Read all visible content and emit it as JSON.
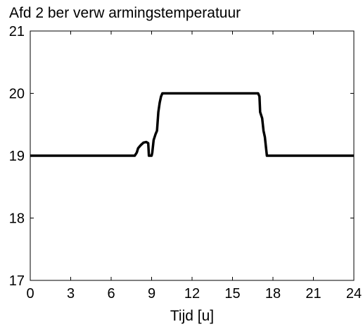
{
  "chart_data": {
    "type": "line",
    "title": "Afd 2 ber verw armingstemperatuur",
    "xlabel": "Tijd [u]",
    "ylabel": "",
    "xlim": [
      0,
      24
    ],
    "ylim": [
      17,
      21
    ],
    "xticks": [
      0,
      3,
      6,
      9,
      12,
      15,
      18,
      21,
      24
    ],
    "yticks": [
      17,
      18,
      19,
      20,
      21
    ],
    "grid": false,
    "colors": {
      "line": "#000000",
      "axes": "#000000",
      "background": "#ffffff"
    },
    "series": [
      {
        "x": [
          0,
          7.75,
          7.9,
          8.0,
          8.2,
          8.4,
          8.6,
          8.75,
          8.8,
          9.0,
          9.05,
          9.15,
          9.3,
          9.4,
          9.5,
          9.6,
          9.7,
          9.8,
          10.0,
          12.0,
          15.0,
          16.8,
          16.9,
          17.0,
          17.05,
          17.2,
          17.3,
          17.4,
          17.5,
          17.55,
          17.7,
          18.0,
          21.0,
          24.0
        ],
        "y": [
          19.0,
          19.0,
          19.05,
          19.12,
          19.17,
          19.21,
          19.22,
          19.2,
          19.0,
          19.0,
          19.05,
          19.25,
          19.35,
          19.4,
          19.7,
          19.85,
          19.95,
          20.0,
          20.0,
          20.0,
          20.0,
          20.0,
          20.0,
          19.95,
          19.7,
          19.6,
          19.4,
          19.3,
          19.1,
          19.0,
          19.0,
          19.0,
          19.0,
          19.0
        ]
      }
    ]
  }
}
